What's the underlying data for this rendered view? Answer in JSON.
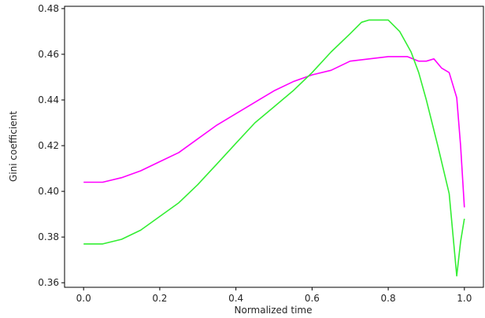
{
  "chart_data": {
    "type": "line",
    "title": "",
    "xlabel": "Normalized time",
    "ylabel": "Gini coefficient",
    "xlim": [
      -0.05,
      1.05
    ],
    "ylim": [
      0.358,
      0.481
    ],
    "xticks": [
      0.0,
      0.2,
      0.4,
      0.6,
      0.8,
      1.0
    ],
    "xtick_labels": [
      "0.0",
      "0.2",
      "0.4",
      "0.6",
      "0.8",
      "1.0"
    ],
    "yticks": [
      0.36,
      0.38,
      0.4,
      0.42,
      0.44,
      0.46,
      0.48
    ],
    "ytick_labels": [
      "0.36",
      "0.38",
      "0.40",
      "0.42",
      "0.44",
      "0.46",
      "0.48"
    ],
    "grid": false,
    "legend": "none",
    "series": [
      {
        "color": "#ff00ff",
        "x": [
          0.0,
          0.05,
          0.1,
          0.15,
          0.2,
          0.25,
          0.3,
          0.35,
          0.4,
          0.45,
          0.5,
          0.55,
          0.6,
          0.65,
          0.7,
          0.75,
          0.8,
          0.85,
          0.88,
          0.9,
          0.92,
          0.94,
          0.96,
          0.98,
          0.99,
          1.0
        ],
        "y": [
          0.404,
          0.404,
          0.406,
          0.409,
          0.413,
          0.417,
          0.423,
          0.429,
          0.434,
          0.439,
          0.444,
          0.448,
          0.451,
          0.453,
          0.457,
          0.458,
          0.459,
          0.459,
          0.457,
          0.457,
          0.458,
          0.454,
          0.452,
          0.441,
          0.42,
          0.393
        ]
      },
      {
        "color": "#33ee33",
        "x": [
          0.0,
          0.05,
          0.1,
          0.15,
          0.2,
          0.25,
          0.3,
          0.35,
          0.4,
          0.45,
          0.5,
          0.55,
          0.6,
          0.65,
          0.7,
          0.73,
          0.75,
          0.8,
          0.83,
          0.86,
          0.88,
          0.9,
          0.93,
          0.96,
          0.98,
          0.99,
          1.0
        ],
        "y": [
          0.377,
          0.377,
          0.379,
          0.383,
          0.389,
          0.395,
          0.403,
          0.412,
          0.421,
          0.43,
          0.437,
          0.444,
          0.452,
          0.461,
          0.469,
          0.474,
          0.475,
          0.475,
          0.47,
          0.461,
          0.452,
          0.44,
          0.42,
          0.399,
          0.363,
          0.378,
          0.388
        ]
      }
    ]
  }
}
